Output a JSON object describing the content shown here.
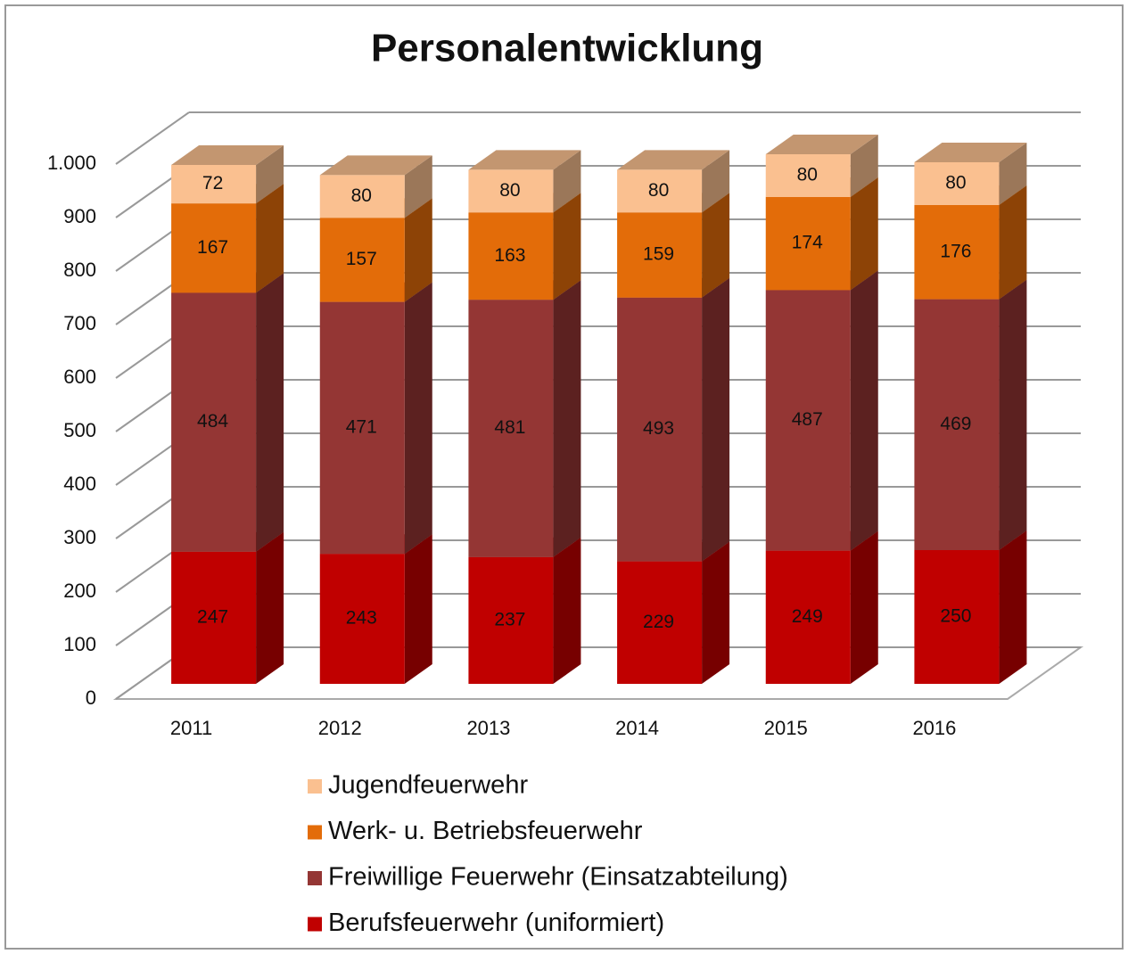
{
  "chart_data": {
    "type": "bar3d_stacked",
    "title": "Personalentwicklung",
    "categories": [
      "2011",
      "2012",
      "2013",
      "2014",
      "2015",
      "2016"
    ],
    "series": [
      {
        "name": "Berufsfeuerwehr (uniformiert)",
        "color": "#c00000",
        "values": [
          247,
          243,
          237,
          229,
          249,
          250
        ]
      },
      {
        "name": "Freiwillige Feuerwehr (Einsatzabteilung)",
        "color": "#943634",
        "values": [
          484,
          471,
          481,
          493,
          487,
          469
        ]
      },
      {
        "name": "Werk- u. Betriebsfeuerwehr",
        "color": "#e36c09",
        "values": [
          167,
          157,
          163,
          159,
          174,
          176
        ]
      },
      {
        "name": "Jugendfeuerwehr",
        "color": "#fac090",
        "values": [
          72,
          80,
          80,
          80,
          80,
          80
        ]
      }
    ],
    "ylim": [
      0,
      1000
    ],
    "yticks": [
      0,
      100,
      200,
      300,
      400,
      500,
      600,
      700,
      800,
      900,
      {
        "value": 1000,
        "label": "1.000"
      }
    ],
    "grid": true
  }
}
